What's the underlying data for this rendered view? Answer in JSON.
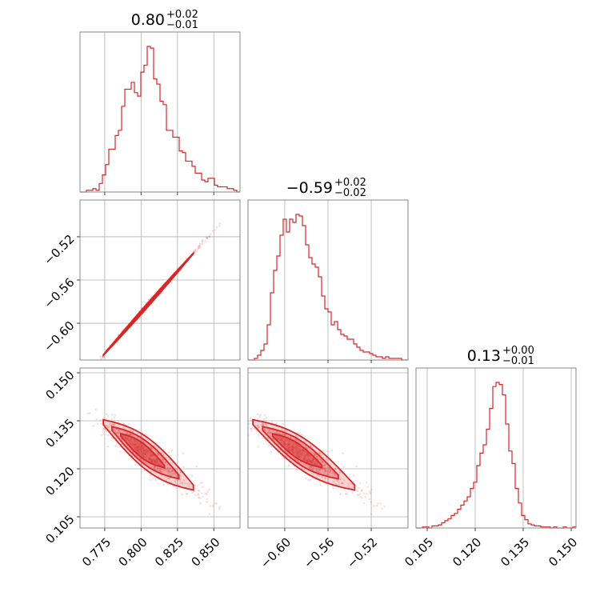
{
  "chart_data": {
    "type": "corner",
    "color": "#d62728",
    "parameters": [
      {
        "median_label": "0.80",
        "upper": "+0.02",
        "lower": "−0.01",
        "ticks": [
          0.775,
          0.8,
          0.825,
          0.85
        ],
        "tick_labels": [
          "0.775",
          "0.800",
          "0.825",
          "0.850"
        ],
        "range": [
          0.758,
          0.868
        ]
      },
      {
        "median_label": "−0.59",
        "upper": "+0.02",
        "lower": "−0.02",
        "ticks": [
          -0.6,
          -0.56,
          -0.52
        ],
        "tick_labels": [
          "−0.60",
          "−0.56",
          "−0.52"
        ],
        "range": [
          -0.634,
          -0.486
        ]
      },
      {
        "median_label": "0.13",
        "upper": "+0.00",
        "lower": "−0.01",
        "ticks": [
          0.105,
          0.12,
          0.135,
          0.15
        ],
        "tick_labels": [
          "0.105",
          "0.120",
          "0.135",
          "0.150"
        ],
        "range": [
          0.1015,
          0.1515
        ]
      }
    ],
    "histograms": [
      {
        "edges_start": 0.758,
        "bin_width": 0.0022,
        "counts": [
          0,
          0,
          1,
          1,
          2,
          1,
          5,
          10,
          16,
          25,
          25,
          33,
          36,
          50,
          60,
          60,
          64,
          58,
          56,
          70,
          74,
          85,
          84,
          66,
          63,
          53,
          51,
          36,
          36,
          32,
          32,
          24,
          23,
          18,
          18,
          15,
          11,
          11,
          7,
          6,
          8,
          8,
          4,
          3,
          3,
          3,
          2,
          2,
          1,
          0
        ]
      },
      {
        "edges_start": -0.634,
        "bin_width": 0.00296,
        "counts": [
          0,
          0,
          1,
          3,
          6,
          10,
          22,
          42,
          56,
          65,
          78,
          88,
          80,
          88,
          86,
          91,
          90,
          84,
          72,
          64,
          60,
          58,
          52,
          40,
          32,
          30,
          22,
          24,
          19,
          16,
          15,
          13,
          13,
          10,
          8,
          6,
          5,
          5,
          4,
          3,
          2,
          2,
          1,
          2,
          1,
          1,
          1,
          1,
          0,
          0
        ]
      },
      {
        "edges_start": 0.1015,
        "bin_width": 0.001,
        "counts": [
          0,
          0,
          1,
          1,
          0,
          2,
          2,
          3,
          5,
          7,
          9,
          12,
          14,
          18,
          22,
          26,
          30,
          38,
          44,
          60,
          72,
          80,
          95,
          115,
          136,
          140,
          138,
          128,
          100,
          74,
          62,
          38,
          24,
          12,
          8,
          4,
          3,
          2,
          2,
          1,
          1,
          1,
          0,
          1,
          0,
          0,
          1,
          0,
          0,
          1
        ]
      }
    ]
  }
}
